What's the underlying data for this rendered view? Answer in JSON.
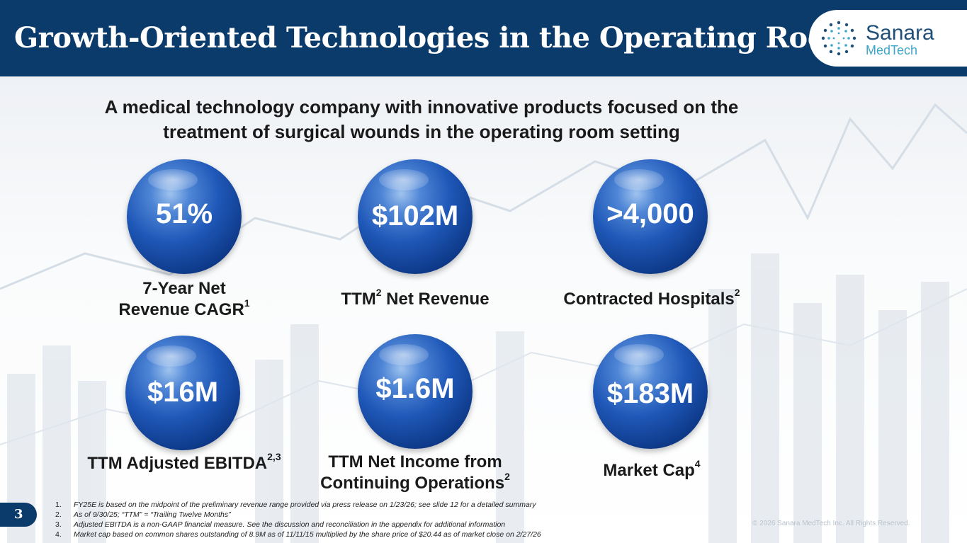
{
  "header": {
    "title": "Growth-Oriented Technologies in the Operating Room",
    "logo_name": "Sanara",
    "logo_sub": "MedTech",
    "bg_color": "#0b3b6b"
  },
  "subtitle_line1": "A medical technology company with innovative products focused on the",
  "subtitle_line2": "treatment of surgical wounds in the operating room setting",
  "metrics": [
    {
      "value": "51%",
      "label_line1": "7-Year Net",
      "label_line2": "Revenue CAGR",
      "sup": "1"
    },
    {
      "value": "$102M",
      "label_pre": "TTM",
      "label_pre_sup": "2",
      "label_post": " Net Revenue"
    },
    {
      "value": ">4,000",
      "label": "Contracted Hospitals",
      "sup": "2"
    },
    {
      "value": "$16M",
      "label": "TTM Adjusted EBITDA",
      "sup": "2,3"
    },
    {
      "value": "$1.6M",
      "label_line1": "TTM Net Income from",
      "label_line2": "Continuing Operations",
      "sup": "2"
    },
    {
      "value": "$183M",
      "label": "Market Cap",
      "sup": "4"
    }
  ],
  "page_number": "3",
  "footnotes": [
    {
      "num": "1.",
      "text": "FY25E is based on the midpoint of the preliminary revenue range provided via press release on 1/23/26; see slide 12 for a detailed summary"
    },
    {
      "num": "2.",
      "text": "As of 9/30/25; “TTM” = “Trailing Twelve Months”"
    },
    {
      "num": "3.",
      "text": "Adjusted EBITDA is a non-GAAP financial measure. See the discussion and reconciliation in the appendix for additional information"
    },
    {
      "num": "4.",
      "text": "Market cap based on common shares outstanding of 8.9M as of 11/11/15 multiplied by the share price of $20.44 as of market close on 2/27/26"
    }
  ],
  "copyright": "© 2026 Sanara MedTech Inc. All Rights Reserved.",
  "colors": {
    "accent": "#0b3b6b",
    "sphere": "#1f58b8",
    "logo_teal": "#3fa6c9"
  }
}
